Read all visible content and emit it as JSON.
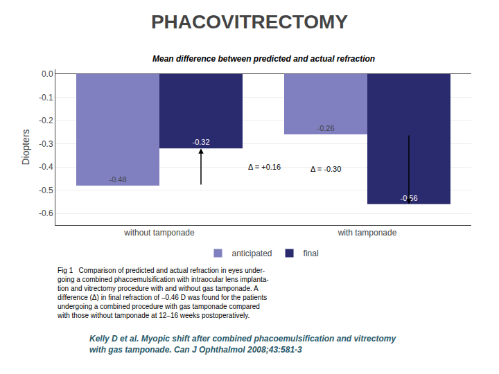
{
  "title": "PHACOVITRECTOMY",
  "caption": [
    "Fig 1   Comparison of predicted and actual refraction in eyes under-",
    "going a combined phacoemulsification with intraocular lens implanta-",
    "tion and vitrectomy procedure with and without gas tamponade. A",
    "difference (Δ) in final refraction of –0.46 D was found for the patients",
    "undergoing a combined procedure with gas tamponade compared",
    "with those without tamponade at 12–16 weeks postoperatively."
  ],
  "footer": [
    "Kelly D et al. Myopic shift after combined phacoemulsification and vitrectomy",
    "with gas tamponade. Can J Ophthalmol 2008;43:581-3"
  ],
  "chart_data": {
    "type": "bar",
    "title": "Mean difference between predicted and actual refraction",
    "categories": [
      "without tamponade",
      "with tamponade"
    ],
    "series": [
      {
        "name": "anticipated",
        "color": "#8080c0",
        "values": [
          -0.48,
          -0.26
        ]
      },
      {
        "name": "final",
        "color": "#2a2a6e",
        "values": [
          -0.32,
          -0.56
        ]
      }
    ],
    "ylabel": "Diopters",
    "ylim": [
      -0.65,
      0.02
    ],
    "yticks": [
      {
        "value": 0,
        "label": "0.0"
      },
      -0.1,
      -0.2,
      -0.3,
      -0.4,
      -0.5,
      -0.6
    ],
    "grid": true,
    "legend": "bottom",
    "data_labels": true,
    "annotations": [
      {
        "text": "Δ = +0.16",
        "category": "without tamponade",
        "from": -0.48,
        "to": -0.32
      },
      {
        "text": "Δ = -0.30",
        "category": "with tamponade",
        "from": -0.26,
        "to": -0.56
      }
    ]
  }
}
